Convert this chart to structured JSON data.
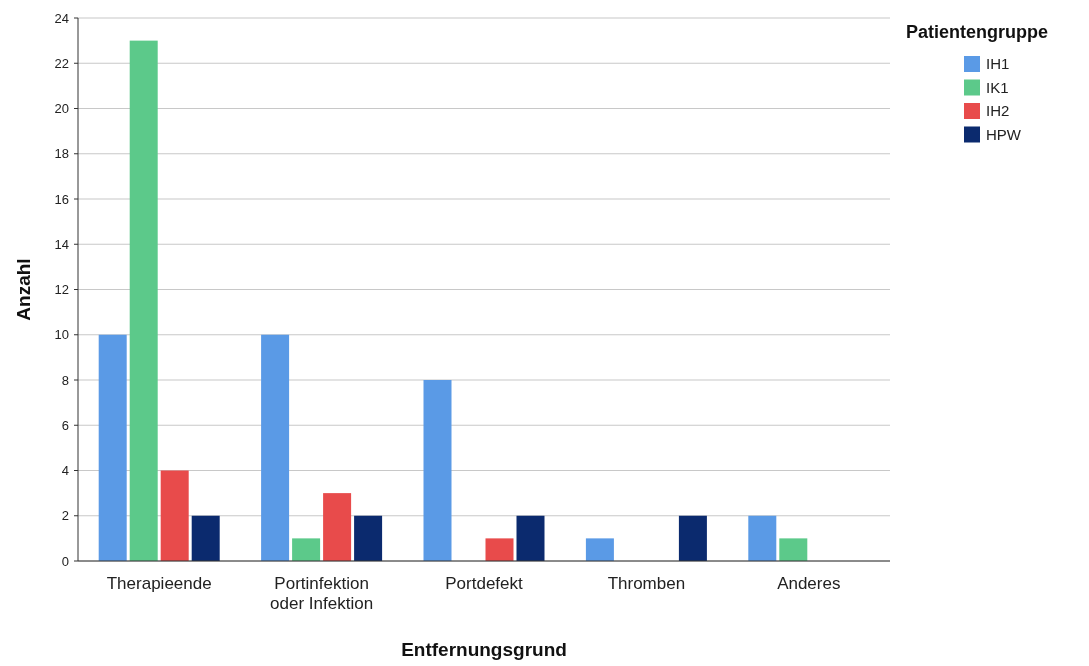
{
  "chart_data": {
    "type": "bar",
    "xlabel": "Entfernungsgrund",
    "ylabel": "Anzahl",
    "legend_title": "Patientengruppe",
    "categories": [
      "Therapieende",
      "Portinfektion oder Infektion",
      "Portdefekt",
      "Thromben",
      "Anderes"
    ],
    "series": [
      {
        "name": "IH1",
        "color": "#5a9ae6",
        "values": [
          10,
          10,
          8,
          1,
          2
        ]
      },
      {
        "name": "IK1",
        "color": "#5cc98a",
        "values": [
          23,
          1,
          0,
          0,
          1
        ]
      },
      {
        "name": "IH2",
        "color": "#e84b4b",
        "values": [
          4,
          3,
          1,
          0,
          0
        ]
      },
      {
        "name": "HPW",
        "color": "#0b2a6e",
        "values": [
          2,
          2,
          2,
          2,
          0
        ]
      }
    ],
    "ylim": [
      0,
      24
    ],
    "yticks": [
      0,
      2,
      4,
      6,
      8,
      10,
      12,
      14,
      16,
      18,
      20,
      22,
      24
    ],
    "grid": "y",
    "legend": "top right"
  }
}
